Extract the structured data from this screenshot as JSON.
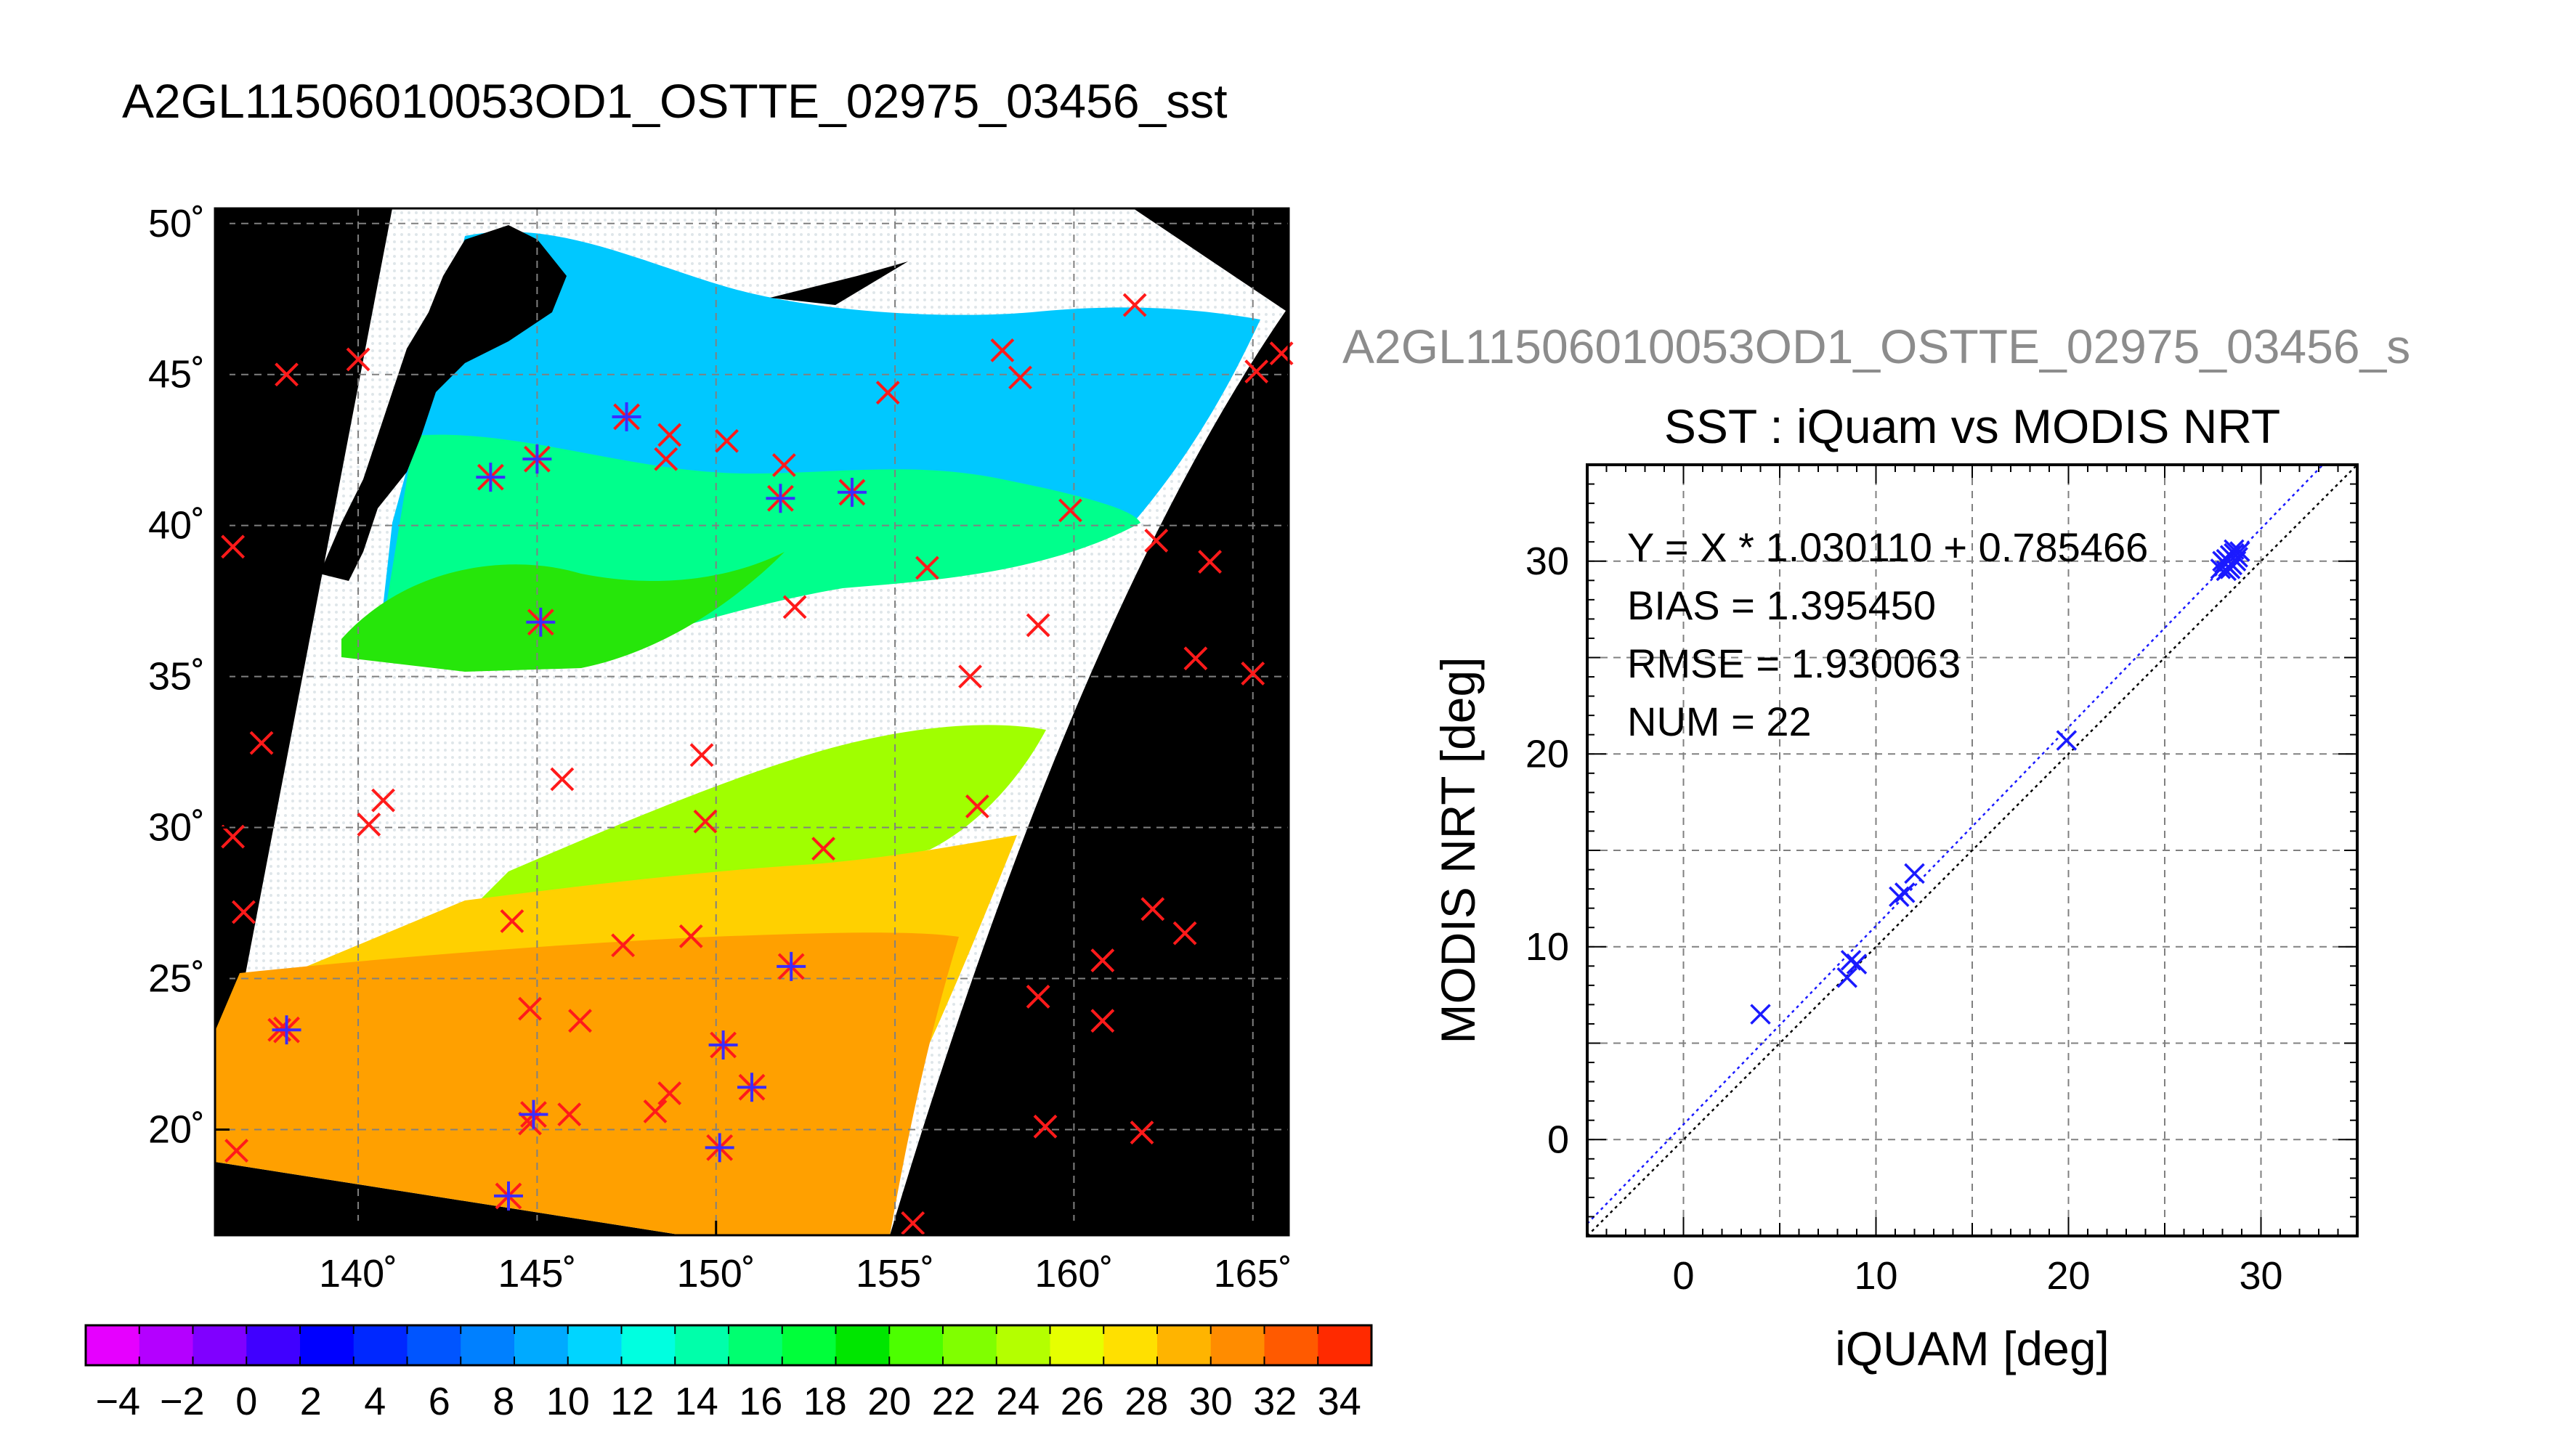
{
  "figure_title": "A2GL11506010053OD1_OSTTE_02975_03456_sst",
  "colors": {
    "sst_scale": [
      "#e600ff",
      "#b400ff",
      "#8000ff",
      "#4000ff",
      "#0000ff",
      "#0028ff",
      "#0055ff",
      "#0080ff",
      "#00aaff",
      "#00d5ff",
      "#00ffe0",
      "#00ffaa",
      "#00ff70",
      "#00ff3a",
      "#00e600",
      "#4cff00",
      "#80ff00",
      "#b4ff00",
      "#e6ff00",
      "#ffe000",
      "#ffb400",
      "#ff8c00",
      "#ff5a00",
      "#ff2a00"
    ],
    "map_background": "#000000",
    "cloud_mask": "#ffffff",
    "buoy_mark": "#ff1a1a",
    "matchup_mark": "#3b2dff",
    "scatter_points": "#1a1aff",
    "fit_line": "#1a1aff",
    "one_to_one_line": "#000000",
    "gray_subtitle": "#8c8c8c"
  },
  "chart_data": [
    {
      "type": "heatmap",
      "name": "sst-map",
      "x_tick_labels": [
        "140˚",
        "145˚",
        "150˚",
        "155˚",
        "160˚",
        "165˚"
      ],
      "x_ticks": [
        140,
        145,
        150,
        155,
        160,
        165
      ],
      "y_tick_labels": [
        "20˚",
        "25˚",
        "30˚",
        "35˚",
        "40˚",
        "45˚",
        "50˚"
      ],
      "y_ticks": [
        20,
        25,
        30,
        35,
        40,
        45,
        50
      ],
      "xlim": [
        136,
        166
      ],
      "ylim": [
        16.5,
        50.5
      ],
      "grid": true,
      "red_buoys": [
        [
          138.0,
          45.0
        ],
        [
          140.0,
          45.5
        ],
        [
          136.5,
          39.3
        ],
        [
          137.3,
          32.8
        ],
        [
          136.5,
          29.7
        ],
        [
          136.8,
          27.2
        ],
        [
          140.7,
          30.9
        ],
        [
          140.3,
          30.1
        ],
        [
          137.8,
          23.3
        ],
        [
          136.6,
          19.3
        ],
        [
          148.7,
          43.0
        ],
        [
          148.6,
          42.2
        ],
        [
          150.3,
          42.8
        ],
        [
          151.9,
          42.0
        ],
        [
          154.8,
          44.4
        ],
        [
          158.0,
          45.8
        ],
        [
          158.5,
          44.9
        ],
        [
          161.7,
          47.3
        ],
        [
          165.8,
          45.7
        ],
        [
          165.1,
          45.1
        ],
        [
          159.9,
          40.5
        ],
        [
          162.3,
          39.5
        ],
        [
          163.8,
          38.8
        ],
        [
          155.9,
          38.6
        ],
        [
          152.2,
          37.3
        ],
        [
          159.0,
          36.7
        ],
        [
          157.1,
          35.0
        ],
        [
          163.4,
          35.6
        ],
        [
          165.0,
          35.1
        ],
        [
          145.7,
          31.6
        ],
        [
          149.6,
          32.4
        ],
        [
          149.7,
          30.2
        ],
        [
          157.3,
          30.7
        ],
        [
          153.0,
          29.3
        ],
        [
          144.3,
          26.9
        ],
        [
          147.4,
          26.1
        ],
        [
          149.3,
          26.4
        ],
        [
          162.2,
          27.3
        ],
        [
          163.1,
          26.5
        ],
        [
          160.8,
          25.6
        ],
        [
          159.0,
          24.4
        ],
        [
          160.8,
          23.6
        ],
        [
          146.2,
          23.6
        ],
        [
          144.8,
          24.0
        ],
        [
          148.7,
          21.2
        ],
        [
          148.3,
          20.6
        ],
        [
          145.9,
          20.5
        ],
        [
          144.8,
          20.2
        ],
        [
          159.2,
          20.1
        ],
        [
          161.9,
          19.9
        ],
        [
          155.5,
          16.9
        ]
      ],
      "matchups": [
        [
          143.7,
          41.6
        ],
        [
          145.0,
          42.2
        ],
        [
          147.5,
          43.6
        ],
        [
          151.8,
          40.9
        ],
        [
          153.8,
          41.1
        ],
        [
          145.1,
          36.8
        ],
        [
          152.1,
          25.4
        ],
        [
          138.0,
          23.3
        ],
        [
          150.2,
          22.8
        ],
        [
          151.0,
          21.4
        ],
        [
          150.1,
          19.4
        ],
        [
          144.9,
          20.5
        ],
        [
          144.2,
          17.8
        ]
      ],
      "colorbar": {
        "tick_labels": [
          "−4",
          "−2",
          "0",
          "2",
          "4",
          "6",
          "8",
          "10",
          "12",
          "14",
          "16",
          "18",
          "20",
          "22",
          "24",
          "26",
          "28",
          "30",
          "32",
          "34"
        ],
        "min": -5,
        "max": 35
      }
    },
    {
      "type": "scatter",
      "name": "sst-scatter",
      "subtitle": "A2GL11506010053OD1_OSTTE_02975_03456_s",
      "title": "SST : iQuam vs MODIS NRT",
      "xlabel": "iQUAM [deg]",
      "ylabel": "MODIS NRT [deg]",
      "xlim": [
        -5,
        35
      ],
      "ylim": [
        -5,
        35
      ],
      "x_ticks": [
        0,
        10,
        20,
        30
      ],
      "y_ticks": [
        0,
        10,
        20,
        30
      ],
      "grid": true,
      "stats": [
        "Y = X * 1.030110 + 0.785466",
        "BIAS = 1.395450",
        "RMSE = 1.930063",
        "NUM = 22"
      ],
      "fit": {
        "slope": 1.03011,
        "intercept": 0.785466
      },
      "points": [
        [
          4.0,
          6.5
        ],
        [
          8.5,
          8.4
        ],
        [
          8.7,
          9.3
        ],
        [
          9.0,
          9.1
        ],
        [
          11.2,
          12.6
        ],
        [
          11.5,
          12.8
        ],
        [
          12.0,
          13.8
        ],
        [
          19.9,
          20.7
        ],
        [
          27.9,
          29.6
        ],
        [
          28.1,
          29.9
        ],
        [
          28.2,
          30.1
        ],
        [
          28.3,
          29.7
        ],
        [
          28.4,
          30.3
        ],
        [
          28.5,
          29.8
        ],
        [
          28.6,
          30.4
        ],
        [
          28.7,
          30.0
        ],
        [
          28.2,
          29.5
        ],
        [
          28.6,
          30.6
        ],
        [
          28.8,
          30.2
        ],
        [
          28.0,
          30.0
        ],
        [
          28.4,
          29.6
        ],
        [
          28.9,
          30.5
        ]
      ]
    }
  ]
}
